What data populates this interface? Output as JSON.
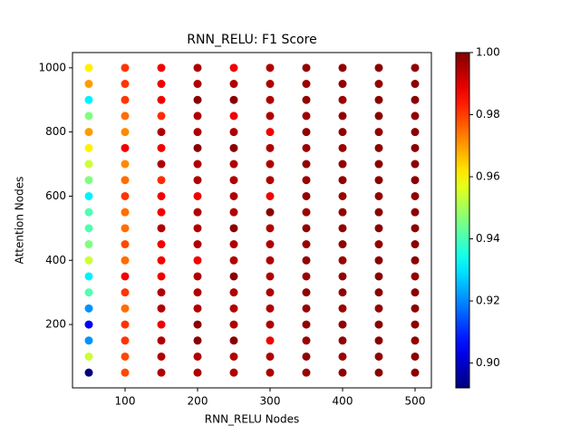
{
  "chart_data": {
    "type": "scatter",
    "title": "RNN_RELU: F1 Score",
    "xlabel": "RNN_RELU Nodes",
    "ylabel": "Attention Nodes",
    "x": [
      50,
      50,
      50,
      50,
      50,
      50,
      50,
      50,
      50,
      50,
      50,
      50,
      50,
      50,
      50,
      50,
      50,
      50,
      50,
      50,
      100,
      100,
      100,
      100,
      100,
      100,
      100,
      100,
      100,
      100,
      100,
      100,
      100,
      100,
      100,
      100,
      100,
      100,
      100,
      100,
      150,
      150,
      150,
      150,
      150,
      150,
      150,
      150,
      150,
      150,
      150,
      150,
      150,
      150,
      150,
      150,
      150,
      150,
      150,
      150,
      200,
      200,
      200,
      200,
      200,
      200,
      200,
      200,
      200,
      200,
      200,
      200,
      200,
      200,
      200,
      200,
      200,
      200,
      200,
      200,
      250,
      250,
      250,
      250,
      250,
      250,
      250,
      250,
      250,
      250,
      250,
      250,
      250,
      250,
      250,
      250,
      250,
      250,
      250,
      250,
      300,
      300,
      300,
      300,
      300,
      300,
      300,
      300,
      300,
      300,
      300,
      300,
      300,
      300,
      300,
      300,
      300,
      300,
      300,
      300,
      350,
      350,
      350,
      350,
      350,
      350,
      350,
      350,
      350,
      350,
      350,
      350,
      350,
      350,
      350,
      350,
      350,
      350,
      350,
      350,
      400,
      400,
      400,
      400,
      400,
      400,
      400,
      400,
      400,
      400,
      400,
      400,
      400,
      400,
      400,
      400,
      400,
      400,
      400,
      400,
      450,
      450,
      450,
      450,
      450,
      450,
      450,
      450,
      450,
      450,
      450,
      450,
      450,
      450,
      450,
      450,
      450,
      450,
      450,
      450,
      500,
      500,
      500,
      500,
      500,
      500,
      500,
      500,
      500,
      500,
      500,
      500,
      500,
      500,
      500,
      500,
      500,
      500,
      500,
      500
    ],
    "y": [
      50,
      100,
      150,
      200,
      250,
      300,
      350,
      400,
      450,
      500,
      550,
      600,
      650,
      700,
      750,
      800,
      850,
      900,
      950,
      1000,
      50,
      100,
      150,
      200,
      250,
      300,
      350,
      400,
      450,
      500,
      550,
      600,
      650,
      700,
      750,
      800,
      850,
      900,
      950,
      1000,
      50,
      100,
      150,
      200,
      250,
      300,
      350,
      400,
      450,
      500,
      550,
      600,
      650,
      700,
      750,
      800,
      850,
      900,
      950,
      1000,
      50,
      100,
      150,
      200,
      250,
      300,
      350,
      400,
      450,
      500,
      550,
      600,
      650,
      700,
      750,
      800,
      850,
      900,
      950,
      1000,
      50,
      100,
      150,
      200,
      250,
      300,
      350,
      400,
      450,
      500,
      550,
      600,
      650,
      700,
      750,
      800,
      850,
      900,
      950,
      1000,
      50,
      100,
      150,
      200,
      250,
      300,
      350,
      400,
      450,
      500,
      550,
      600,
      650,
      700,
      750,
      800,
      850,
      900,
      950,
      1000,
      50,
      100,
      150,
      200,
      250,
      300,
      350,
      400,
      450,
      500,
      550,
      600,
      650,
      700,
      750,
      800,
      850,
      900,
      950,
      1000,
      50,
      100,
      150,
      200,
      250,
      300,
      350,
      400,
      450,
      500,
      550,
      600,
      650,
      700,
      750,
      800,
      850,
      900,
      950,
      1000,
      50,
      100,
      150,
      200,
      250,
      300,
      350,
      400,
      450,
      500,
      550,
      600,
      650,
      700,
      750,
      800,
      850,
      900,
      950,
      1000,
      50,
      100,
      150,
      200,
      250,
      300,
      350,
      400,
      450,
      500,
      550,
      600,
      650,
      700,
      750,
      800,
      850,
      900,
      950,
      1000
    ],
    "values": [
      0.892,
      0.954,
      0.921,
      0.905,
      0.921,
      0.941,
      0.931,
      0.954,
      0.946,
      0.941,
      0.941,
      0.931,
      0.946,
      0.954,
      0.961,
      0.97,
      0.946,
      0.931,
      0.97,
      0.961,
      0.979,
      0.979,
      0.981,
      0.981,
      0.975,
      0.981,
      0.988,
      0.975,
      0.979,
      0.975,
      0.975,
      0.981,
      0.975,
      0.972,
      0.988,
      0.972,
      0.975,
      0.981,
      0.981,
      0.981,
      0.995,
      0.995,
      0.995,
      0.988,
      0.995,
      0.995,
      0.988,
      0.988,
      0.988,
      0.995,
      0.988,
      0.988,
      0.982,
      0.995,
      0.988,
      0.995,
      0.982,
      0.988,
      0.988,
      0.988,
      0.995,
      0.995,
      0.999,
      0.999,
      0.995,
      0.995,
      0.995,
      0.988,
      0.995,
      0.995,
      0.995,
      0.988,
      0.995,
      0.995,
      0.999,
      0.995,
      0.995,
      0.999,
      0.995,
      0.995,
      0.995,
      0.995,
      0.999,
      0.995,
      0.995,
      0.995,
      0.999,
      0.995,
      0.995,
      0.999,
      0.995,
      0.995,
      0.995,
      0.995,
      0.999,
      0.995,
      0.988,
      0.999,
      0.995,
      0.988,
      0.995,
      0.995,
      0.988,
      0.995,
      0.995,
      0.995,
      0.995,
      0.995,
      0.995,
      0.995,
      0.999,
      0.988,
      0.995,
      0.995,
      0.995,
      0.988,
      0.995,
      0.995,
      0.995,
      0.995,
      0.997,
      0.998,
      0.997,
      0.998,
      0.997,
      0.998,
      0.997,
      0.998,
      0.997,
      0.998,
      0.997,
      0.998,
      0.997,
      0.998,
      0.997,
      0.998,
      0.997,
      0.998,
      0.997,
      0.998,
      0.998,
      0.997,
      0.998,
      0.998,
      0.997,
      0.998,
      0.998,
      0.997,
      0.998,
      0.998,
      0.998,
      0.997,
      0.998,
      0.998,
      0.997,
      0.998,
      0.998,
      0.997,
      0.998,
      0.998,
      0.999,
      0.998,
      0.999,
      0.999,
      0.998,
      0.999,
      0.999,
      0.999,
      0.998,
      0.999,
      0.999,
      0.998,
      0.999,
      0.999,
      0.999,
      0.998,
      0.999,
      0.999,
      0.998,
      0.999,
      0.999,
      0.999,
      0.998,
      0.999,
      0.999,
      0.999,
      0.998,
      0.999,
      0.999,
      0.999,
      0.999,
      0.998,
      0.999,
      0.999,
      0.999,
      0.999,
      0.998,
      0.999,
      0.999,
      0.998
    ],
    "xlim": [
      27.5,
      522.5
    ],
    "xticks": [
      100,
      200,
      300,
      400,
      500
    ],
    "ylim": [
      2.5,
      1047.5
    ],
    "yticks": [
      200,
      400,
      600,
      800,
      1000
    ],
    "cmap": "jet",
    "clim": [
      0.892,
      1.0
    ],
    "cticks": [
      {
        "value": 0.9,
        "label": "0.90"
      },
      {
        "value": 0.92,
        "label": "0.92"
      },
      {
        "value": 0.94,
        "label": "0.94"
      },
      {
        "value": 0.96,
        "label": "0.96"
      },
      {
        "value": 0.98,
        "label": "0.98"
      },
      {
        "value": 1.0,
        "label": "1.00"
      }
    ]
  }
}
